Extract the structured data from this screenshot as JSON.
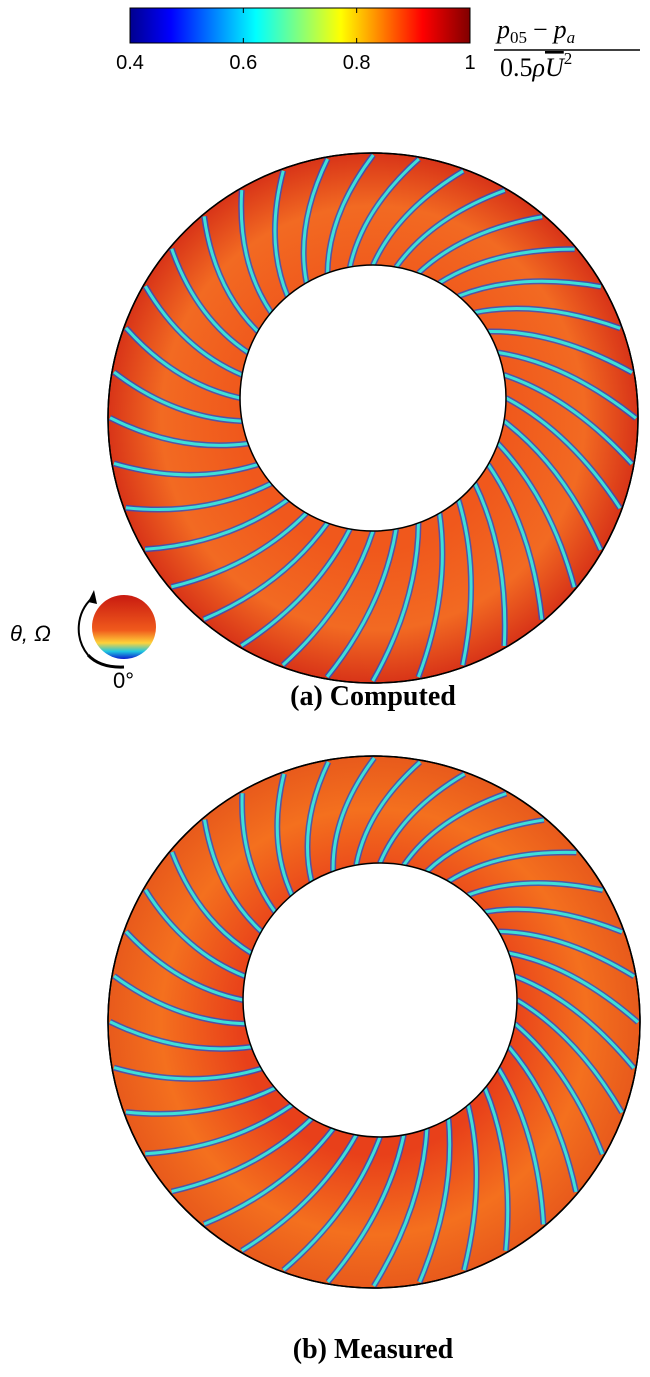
{
  "colorbar": {
    "range": [
      0.4,
      1
    ],
    "ticks": [
      0.4,
      0.6,
      0.8,
      1
    ],
    "label": {
      "numerator": {
        "p1": "p",
        "sub1": "05",
        "op": "−",
        "p2": "p",
        "sub2": "a"
      },
      "denominator": {
        "coef": "0.5",
        "rho": "ρ",
        "u": "U",
        "exp": "2"
      }
    }
  },
  "inset": {
    "axis_label": "θ, Ω",
    "origin_label": "0°"
  },
  "panels": [
    {
      "caption": "(a) Computed"
    },
    {
      "caption": "(b) Measured"
    }
  ]
}
